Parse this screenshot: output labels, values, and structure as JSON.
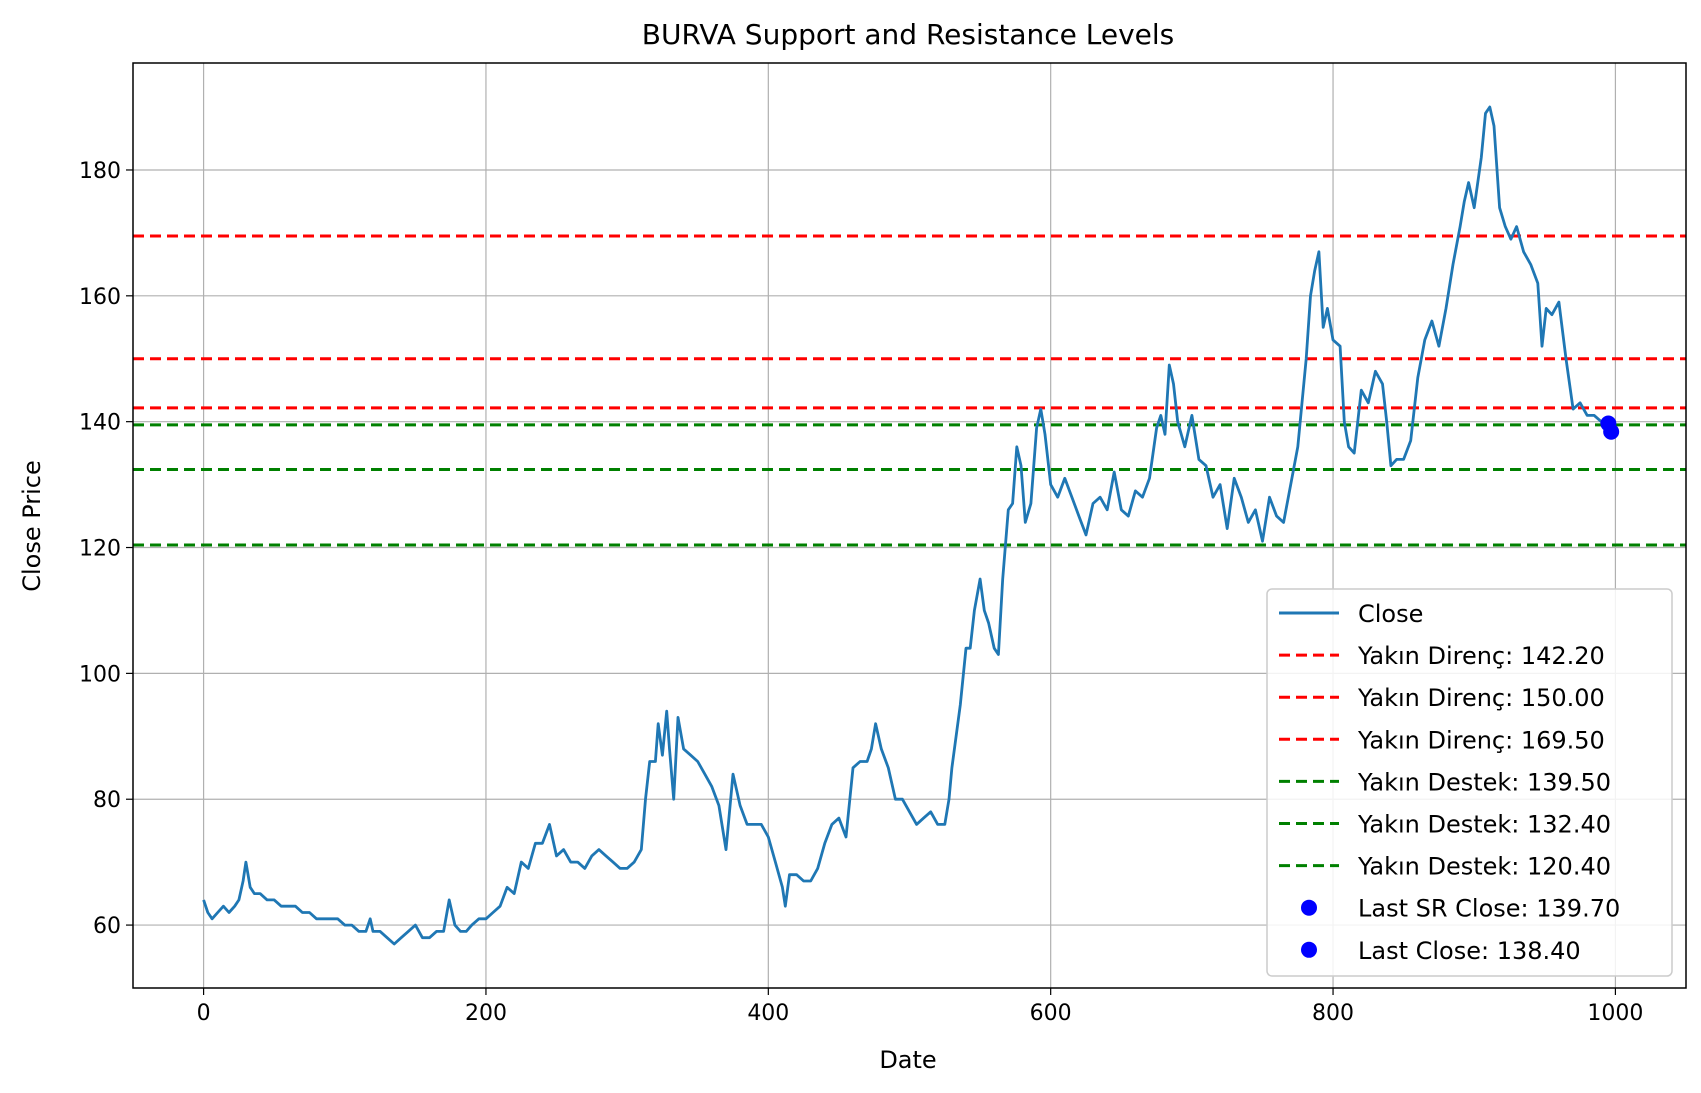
{
  "chart_data": {
    "type": "line",
    "title": "BURVA Support and Resistance Levels",
    "xlabel": "Date",
    "ylabel": "Close Price",
    "xlim": [
      -50,
      1050
    ],
    "ylim": [
      50,
      197
    ],
    "grid": true,
    "legend_position": "lower right",
    "x_ticks": [
      0,
      200,
      400,
      600,
      800,
      1000
    ],
    "y_ticks": [
      60,
      80,
      100,
      120,
      140,
      160,
      180
    ],
    "series": [
      {
        "name": "Close",
        "color": "#1f77b4",
        "points": [
          [
            0,
            64
          ],
          [
            3,
            62
          ],
          [
            6,
            61
          ],
          [
            10,
            62
          ],
          [
            14,
            63
          ],
          [
            18,
            62
          ],
          [
            22,
            63
          ],
          [
            25,
            64
          ],
          [
            28,
            67
          ],
          [
            30,
            70
          ],
          [
            33,
            66
          ],
          [
            36,
            65
          ],
          [
            40,
            65
          ],
          [
            45,
            64
          ],
          [
            50,
            64
          ],
          [
            55,
            63
          ],
          [
            60,
            63
          ],
          [
            65,
            63
          ],
          [
            70,
            62
          ],
          [
            75,
            62
          ],
          [
            80,
            61
          ],
          [
            85,
            61
          ],
          [
            90,
            61
          ],
          [
            95,
            61
          ],
          [
            100,
            60
          ],
          [
            105,
            60
          ],
          [
            110,
            59
          ],
          [
            115,
            59
          ],
          [
            118,
            61
          ],
          [
            120,
            59
          ],
          [
            125,
            59
          ],
          [
            130,
            58
          ],
          [
            135,
            57
          ],
          [
            140,
            58
          ],
          [
            145,
            59
          ],
          [
            150,
            60
          ],
          [
            155,
            58
          ],
          [
            160,
            58
          ],
          [
            165,
            59
          ],
          [
            170,
            59
          ],
          [
            174,
            64
          ],
          [
            178,
            60
          ],
          [
            182,
            59
          ],
          [
            186,
            59
          ],
          [
            190,
            60
          ],
          [
            195,
            61
          ],
          [
            200,
            61
          ],
          [
            205,
            62
          ],
          [
            210,
            63
          ],
          [
            215,
            66
          ],
          [
            220,
            65
          ],
          [
            225,
            70
          ],
          [
            230,
            69
          ],
          [
            235,
            73
          ],
          [
            240,
            73
          ],
          [
            245,
            76
          ],
          [
            250,
            71
          ],
          [
            255,
            72
          ],
          [
            260,
            70
          ],
          [
            265,
            70
          ],
          [
            270,
            69
          ],
          [
            275,
            71
          ],
          [
            280,
            72
          ],
          [
            285,
            71
          ],
          [
            290,
            70
          ],
          [
            295,
            69
          ],
          [
            300,
            69
          ],
          [
            305,
            70
          ],
          [
            310,
            72
          ],
          [
            313,
            80
          ],
          [
            316,
            86
          ],
          [
            320,
            86
          ],
          [
            322,
            92
          ],
          [
            325,
            87
          ],
          [
            328,
            94
          ],
          [
            330,
            88
          ],
          [
            333,
            80
          ],
          [
            336,
            93
          ],
          [
            340,
            88
          ],
          [
            345,
            87
          ],
          [
            350,
            86
          ],
          [
            355,
            84
          ],
          [
            360,
            82
          ],
          [
            365,
            79
          ],
          [
            370,
            72
          ],
          [
            375,
            84
          ],
          [
            380,
            79
          ],
          [
            385,
            76
          ],
          [
            390,
            76
          ],
          [
            395,
            76
          ],
          [
            400,
            74
          ],
          [
            405,
            70
          ],
          [
            410,
            66
          ],
          [
            412,
            63
          ],
          [
            415,
            68
          ],
          [
            420,
            68
          ],
          [
            425,
            67
          ],
          [
            430,
            67
          ],
          [
            435,
            69
          ],
          [
            440,
            73
          ],
          [
            445,
            76
          ],
          [
            450,
            77
          ],
          [
            455,
            74
          ],
          [
            460,
            85
          ],
          [
            465,
            86
          ],
          [
            470,
            86
          ],
          [
            473,
            88
          ],
          [
            476,
            92
          ],
          [
            480,
            88
          ],
          [
            485,
            85
          ],
          [
            490,
            80
          ],
          [
            495,
            80
          ],
          [
            500,
            78
          ],
          [
            505,
            76
          ],
          [
            510,
            77
          ],
          [
            515,
            78
          ],
          [
            520,
            76
          ],
          [
            525,
            76
          ],
          [
            528,
            80
          ],
          [
            530,
            85
          ],
          [
            533,
            90
          ],
          [
            536,
            95
          ],
          [
            540,
            104
          ],
          [
            543,
            104
          ],
          [
            546,
            110
          ],
          [
            550,
            115
          ],
          [
            553,
            110
          ],
          [
            556,
            108
          ],
          [
            560,
            104
          ],
          [
            563,
            103
          ],
          [
            566,
            115
          ],
          [
            570,
            126
          ],
          [
            573,
            127
          ],
          [
            576,
            136
          ],
          [
            579,
            133
          ],
          [
            582,
            124
          ],
          [
            586,
            127
          ],
          [
            590,
            139
          ],
          [
            593,
            142
          ],
          [
            596,
            138
          ],
          [
            600,
            130
          ],
          [
            605,
            128
          ],
          [
            610,
            131
          ],
          [
            615,
            128
          ],
          [
            620,
            125
          ],
          [
            625,
            122
          ],
          [
            630,
            127
          ],
          [
            635,
            128
          ],
          [
            640,
            126
          ],
          [
            645,
            132
          ],
          [
            650,
            126
          ],
          [
            655,
            125
          ],
          [
            660,
            129
          ],
          [
            665,
            128
          ],
          [
            670,
            131
          ],
          [
            675,
            139
          ],
          [
            678,
            141
          ],
          [
            681,
            138
          ],
          [
            684,
            149
          ],
          [
            687,
            146
          ],
          [
            690,
            140
          ],
          [
            695,
            136
          ],
          [
            700,
            141
          ],
          [
            705,
            134
          ],
          [
            710,
            133
          ],
          [
            715,
            128
          ],
          [
            720,
            130
          ],
          [
            725,
            123
          ],
          [
            730,
            131
          ],
          [
            735,
            128
          ],
          [
            740,
            124
          ],
          [
            745,
            126
          ],
          [
            750,
            121
          ],
          [
            755,
            128
          ],
          [
            760,
            125
          ],
          [
            765,
            124
          ],
          [
            770,
            130
          ],
          [
            775,
            136
          ],
          [
            778,
            143
          ],
          [
            781,
            150
          ],
          [
            784,
            160
          ],
          [
            787,
            164
          ],
          [
            790,
            167
          ],
          [
            793,
            155
          ],
          [
            796,
            158
          ],
          [
            800,
            153
          ],
          [
            805,
            152
          ],
          [
            808,
            140
          ],
          [
            811,
            136
          ],
          [
            815,
            135
          ],
          [
            820,
            145
          ],
          [
            825,
            143
          ],
          [
            830,
            148
          ],
          [
            835,
            146
          ],
          [
            838,
            140
          ],
          [
            841,
            133
          ],
          [
            845,
            134
          ],
          [
            850,
            134
          ],
          [
            855,
            137
          ],
          [
            860,
            147
          ],
          [
            865,
            153
          ],
          [
            870,
            156
          ],
          [
            875,
            152
          ],
          [
            880,
            158
          ],
          [
            885,
            165
          ],
          [
            890,
            171
          ],
          [
            893,
            175
          ],
          [
            896,
            178
          ],
          [
            900,
            174
          ],
          [
            905,
            182
          ],
          [
            908,
            189
          ],
          [
            911,
            190
          ],
          [
            914,
            187
          ],
          [
            918,
            174
          ],
          [
            922,
            171
          ],
          [
            926,
            169
          ],
          [
            930,
            171
          ],
          [
            935,
            167
          ],
          [
            940,
            165
          ],
          [
            945,
            162
          ],
          [
            948,
            152
          ],
          [
            951,
            158
          ],
          [
            955,
            157
          ],
          [
            960,
            159
          ],
          [
            965,
            150
          ],
          [
            970,
            142
          ],
          [
            975,
            143
          ],
          [
            980,
            141
          ],
          [
            985,
            141
          ],
          [
            990,
            140
          ],
          [
            995,
            139
          ],
          [
            1000,
            139
          ]
        ]
      }
    ],
    "hlines": [
      {
        "label": "Yakın Direnç: 142.20",
        "y": 142.2,
        "color": "#ff0000"
      },
      {
        "label": "Yakın Direnç: 150.00",
        "y": 150.0,
        "color": "#ff0000"
      },
      {
        "label": "Yakın Direnç: 169.50",
        "y": 169.5,
        "color": "#ff0000"
      },
      {
        "label": "Yakın Destek: 139.50",
        "y": 139.5,
        "color": "#008000"
      },
      {
        "label": "Yakın Destek: 132.40",
        "y": 132.4,
        "color": "#008000"
      },
      {
        "label": "Yakın Destek: 120.40",
        "y": 120.4,
        "color": "#008000"
      }
    ],
    "points": [
      {
        "label": "Last SR Close: 139.70",
        "x": 995,
        "y": 139.7,
        "color": "#0000ff"
      },
      {
        "label": "Last Close: 138.40",
        "x": 997,
        "y": 138.4,
        "color": "#0000ff"
      }
    ]
  }
}
